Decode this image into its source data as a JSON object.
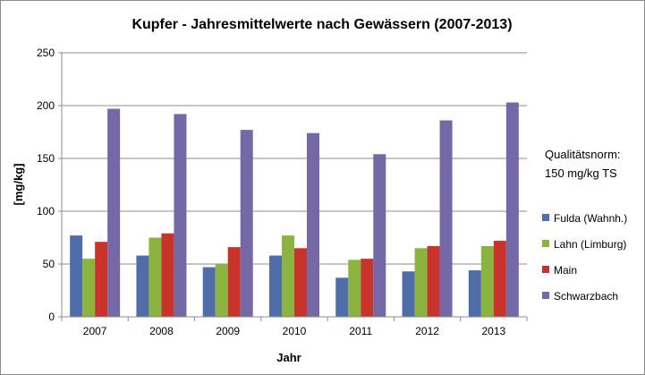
{
  "chart_data": {
    "type": "bar",
    "title": "Kupfer - Jahresmittelwerte nach Gewässern (2007-2013)",
    "xlabel": "Jahr",
    "ylabel": "[mg/kg]",
    "ylim": [
      0,
      250
    ],
    "yticks": [
      0,
      50,
      100,
      150,
      200,
      250
    ],
    "grid": true,
    "legend_position": "right",
    "categories": [
      "2007",
      "2008",
      "2009",
      "2010",
      "2011",
      "2012",
      "2013"
    ],
    "series": [
      {
        "name": "Fulda (Wahnh.)",
        "color": "#4f6ea9",
        "values": [
          77,
          58,
          47,
          58,
          37,
          43,
          44
        ]
      },
      {
        "name": "Lahn (Limburg)",
        "color": "#8ab43f",
        "values": [
          55,
          75,
          50,
          77,
          54,
          65,
          67
        ]
      },
      {
        "name": "Main",
        "color": "#c8342c",
        "values": [
          71,
          79,
          66,
          65,
          55,
          67,
          72
        ]
      },
      {
        "name": "Schwarzbach",
        "color": "#7468a6",
        "values": [
          197,
          192,
          177,
          174,
          154,
          186,
          203
        ]
      }
    ],
    "annotation": {
      "lines": [
        "Qualitätsnorm:",
        "150 mg/kg TS"
      ]
    }
  }
}
